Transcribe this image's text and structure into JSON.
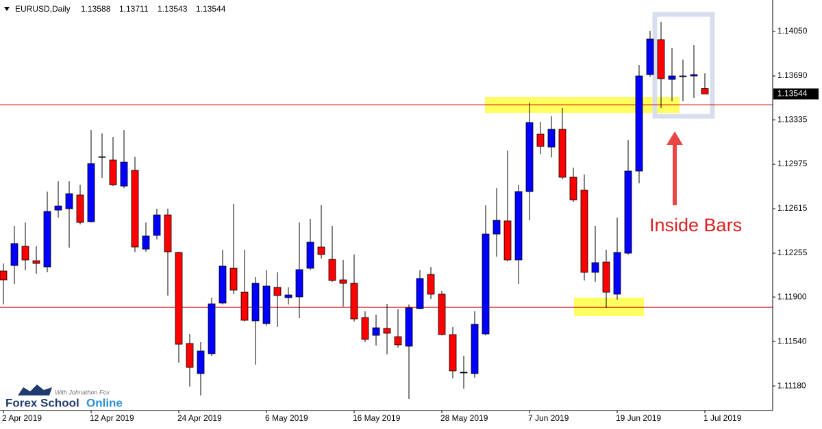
{
  "chart_data": {
    "type": "candlestick",
    "title": "EURUSD,Daily",
    "categories": [
      "2 Apr 2019",
      null,
      null,
      null,
      null,
      null,
      null,
      null,
      "12 Apr 2019",
      null,
      null,
      null,
      null,
      null,
      null,
      null,
      "24 Apr 2019",
      null,
      null,
      null,
      null,
      null,
      null,
      null,
      "6 May 2019",
      null,
      null,
      null,
      null,
      null,
      null,
      null,
      "16 May 2019",
      null,
      null,
      null,
      null,
      null,
      null,
      null,
      "28 May 2019",
      null,
      null,
      null,
      null,
      null,
      null,
      null,
      "7 Jun 2019",
      null,
      null,
      null,
      null,
      null,
      null,
      null,
      "19 Jun 2019",
      null,
      null,
      null,
      null,
      null,
      null,
      null,
      "1 Jul 2019"
    ],
    "open": [
      1.12111,
      1.12155,
      1.12311,
      1.12194,
      1.12144,
      1.12604,
      1.12615,
      1.12726,
      1.1251,
      1.13031,
      1.13009,
      1.12798,
      1.12926,
      1.12288,
      1.12399,
      1.12565,
      1.12261,
      1.11524,
      1.1128,
      1.11441,
      1.11851,
      1.12133,
      1.11939,
      1.11707,
      1.11685,
      1.11978,
      1.11895,
      1.11901,
      1.12133,
      1.12305,
      1.12205,
      1.12039,
      1.12011,
      1.11734,
      1.1159,
      1.11646,
      1.11579,
      1.11502,
      1.11806,
      1.12083,
      1.11923,
      1.11596,
      1.11286,
      1.1128,
      1.11601,
      1.1241,
      1.12516,
      1.122,
      1.12754,
      1.13219,
      1.13114,
      1.13258,
      1.1287,
      1.12765,
      1.121,
      1.12183,
      1.11923,
      1.12255,
      1.1292,
      1.13701,
      1.13984,
      1.13662,
      1.13684,
      1.1369,
      1.13588
    ],
    "high": [
      1.12172,
      1.12477,
      1.12504,
      1.12311,
      1.12754,
      1.12837,
      1.12837,
      1.12809,
      1.13252,
      1.13225,
      1.13197,
      1.13252,
      1.13036,
      1.12504,
      1.12615,
      1.12615,
      1.12266,
      1.11601,
      1.11535,
      1.11895,
      1.12283,
      1.12654,
      1.12283,
      1.12061,
      1.12117,
      1.121,
      1.11978,
      1.12504,
      1.12532,
      1.12643,
      1.12477,
      1.122,
      1.12244,
      1.11784,
      1.11757,
      1.11845,
      1.11801,
      1.1184,
      1.12117,
      1.12144,
      1.1195,
      1.11657,
      1.11424,
      1.11784,
      1.12643,
      1.12781,
      1.13086,
      1.12809,
      1.13474,
      1.13319,
      1.13363,
      1.1343,
      1.12948,
      1.12892,
      1.12477,
      1.12283,
      1.12543,
      1.13169,
      1.13779,
      1.14056,
      1.14128,
      1.13917,
      1.13823,
      1.13939,
      1.13711
    ],
    "low": [
      1.1184,
      1.12006,
      1.12117,
      1.12089,
      1.121,
      1.12543,
      1.123,
      1.12488,
      1.12504,
      1.12865,
      1.12798,
      1.12781,
      1.12266,
      1.12266,
      1.12366,
      1.11912,
      1.11369,
      1.11175,
      1.11103,
      1.11424,
      1.1184,
      1.11923,
      1.11701,
      1.11352,
      1.11668,
      1.11657,
      1.1184,
      1.11729,
      1.12117,
      1.12211,
      1.12023,
      1.11823,
      1.11701,
      1.11535,
      1.11507,
      1.11435,
      1.11491,
      1.11075,
      1.11801,
      1.11884,
      1.1159,
      1.11241,
      1.11158,
      1.11247,
      1.1159,
      1.12227,
      1.12189,
      1.12006,
      1.12521,
      1.13058,
      1.13031,
      1.12854,
      1.12671,
      1.12034,
      1.12023,
      1.11812,
      1.11879,
      1.12244,
      1.1282,
      1.13684,
      1.1343,
      1.13485,
      1.13485,
      1.13513,
      1.13543
    ],
    "close": [
      1.12039,
      1.12333,
      1.122,
      1.12172,
      1.12593,
      1.12637,
      1.12737,
      1.12504,
      1.12981,
      1.13036,
      1.12809,
      1.12992,
      1.12305,
      1.12394,
      1.12565,
      1.12266,
      1.11518,
      1.1133,
      1.11463,
      1.11845,
      1.1215,
      1.11956,
      1.11712,
      1.12011,
      1.11989,
      1.11912,
      1.11917,
      1.12122,
      1.12344,
      1.12244,
      1.12034,
      1.12011,
      1.11723,
      1.11557,
      1.11651,
      1.11607,
      1.11513,
      1.11812,
      1.1205,
      1.11923,
      1.11596,
      1.11302,
      1.11291,
      1.11679,
      1.1241,
      1.12521,
      1.122,
      1.12754,
      1.13313,
      1.13119,
      1.13258,
      1.1287,
      1.12687,
      1.121,
      1.12178,
      1.11939,
      1.12261,
      1.1292,
      1.1369,
      1.13989,
      1.13668,
      1.1369,
      1.1369,
      1.13701,
      1.13544
    ],
    "up_color": "#0000ff",
    "down_color": "#ff0000",
    "wick_color": "#000000",
    "ylim": [
      1.10981,
      1.14305
    ],
    "yticks": [
      {
        "value": 1.1118,
        "label": "1.11180"
      },
      {
        "value": 1.1154,
        "label": "1.11540"
      },
      {
        "value": 1.119,
        "label": "1.11900"
      },
      1.12255,
      1.12615,
      1.12975,
      1.13335,
      {
        "value": 1.1369,
        "label": "1.13690"
      },
      {
        "value": 1.1405,
        "label": "1.14050"
      }
    ],
    "levels": [
      1.13457,
      1.11817
    ],
    "level_color": "#cc0000",
    "annotation": "Inside Bars",
    "brand": [
      "Forex School",
      "Online"
    ],
    "brand_tagline": "With Johnathon Fox"
  }
}
